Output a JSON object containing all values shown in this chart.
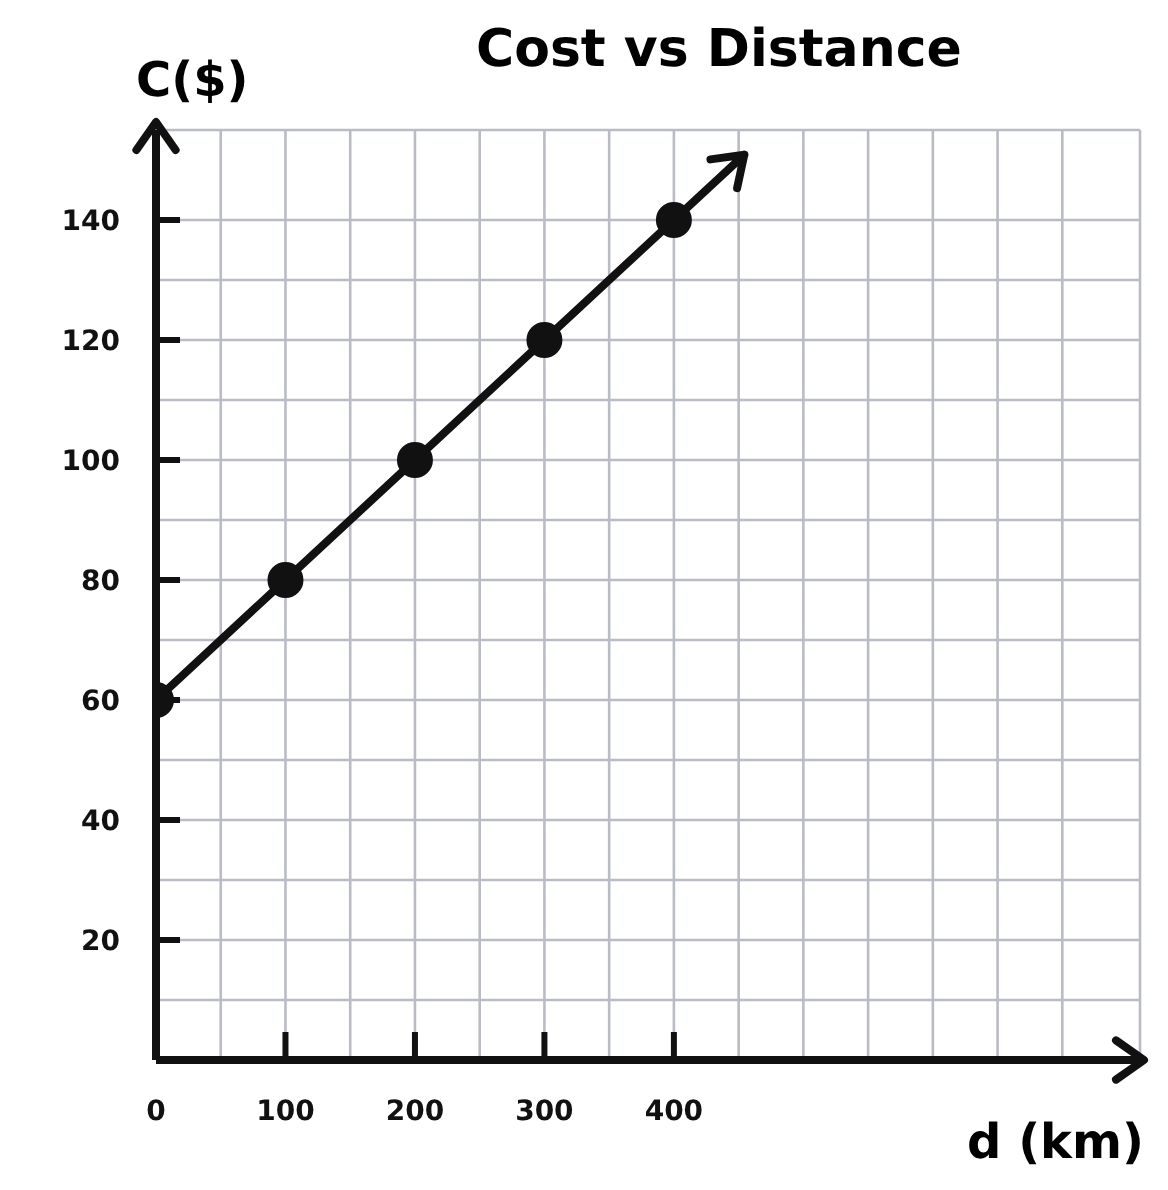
{
  "chart_data": {
    "type": "line",
    "title": "Cost vs Distance",
    "xlabel": "d (km)",
    "ylabel": "C($)",
    "x": [
      0,
      100,
      200,
      300,
      400
    ],
    "series": [
      {
        "color": "#111111",
        "values": [
          60,
          80,
          100,
          120,
          140
        ]
      }
    ],
    "xlim": [
      0,
      760
    ],
    "xticks": [
      0,
      {
        "value": 50,
        "label": null
      },
      100,
      {
        "value": 150,
        "label": null
      },
      200,
      {
        "value": 250,
        "label": null
      },
      300,
      {
        "value": 350,
        "label": null
      },
      400,
      {
        "value": 450,
        "label": null
      },
      {
        "value": 500,
        "label": null
      },
      {
        "value": 550,
        "label": null
      },
      {
        "value": 600,
        "label": null
      },
      {
        "value": 650,
        "label": null
      },
      {
        "value": 700,
        "label": null
      }
    ],
    "ylim": [
      0,
      155
    ],
    "yticks": [
      {
        "value": 10,
        "label": null
      },
      20,
      {
        "value": 30,
        "label": null
      },
      40,
      {
        "value": 50,
        "label": null
      },
      60,
      {
        "value": 70,
        "label": null
      },
      80,
      {
        "value": 90,
        "label": null
      },
      100,
      {
        "value": 110,
        "label": null
      },
      120,
      {
        "value": 130,
        "label": null
      },
      140
    ],
    "grid": true,
    "marker": "circle",
    "line_style": "solid",
    "legend": false
  }
}
